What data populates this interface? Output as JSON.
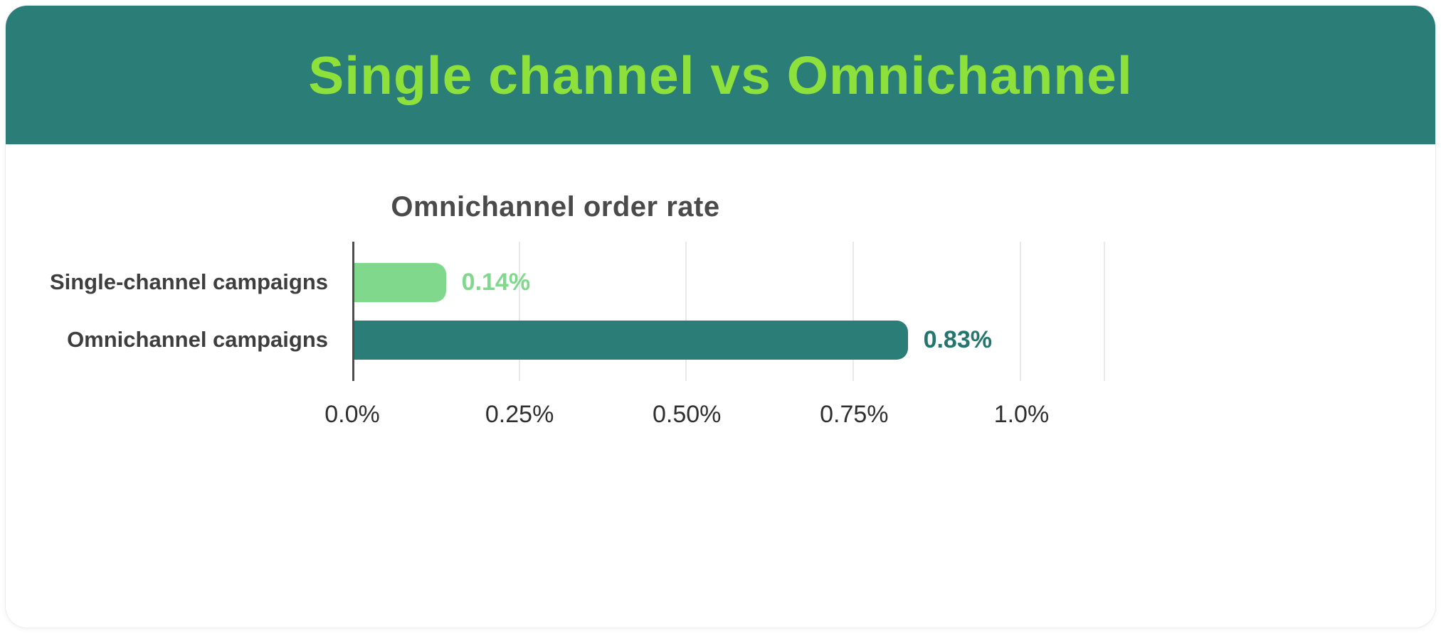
{
  "header": {
    "title": "Single channel vs Omnichannel"
  },
  "chart_data": {
    "type": "bar",
    "orientation": "horizontal",
    "title": "Omnichannel order rate",
    "categories": [
      "Single-channel campaigns",
      "Omnichannel campaigns"
    ],
    "values": [
      0.14,
      0.83
    ],
    "value_labels": [
      "0.14%",
      "0.83%"
    ],
    "unit": "%",
    "bar_colors": [
      "#7fd88b",
      "#2b7d77"
    ],
    "value_label_colors": [
      "#7fd88b",
      "#25756f"
    ],
    "xlabel": "",
    "ylabel": "",
    "xlim": [
      0,
      1.125
    ],
    "x_ticks": [
      0,
      0.25,
      0.5,
      0.75,
      1.0
    ],
    "x_tick_labels": [
      "0.0%",
      "0.25%",
      "0.50%",
      "0.75%",
      "1.0%"
    ],
    "grid": "vertical",
    "legend": "none"
  },
  "style": {
    "header_bg": "#2b7d77",
    "header_text": "#8ee13b",
    "chart_title": "#4a4a4a",
    "category_label": "#3e3e3e",
    "tick_label": "#2f2f2f",
    "grid": "#e9e9e9",
    "axis": "#4d4d4d",
    "card_bg": "#ffffff"
  }
}
